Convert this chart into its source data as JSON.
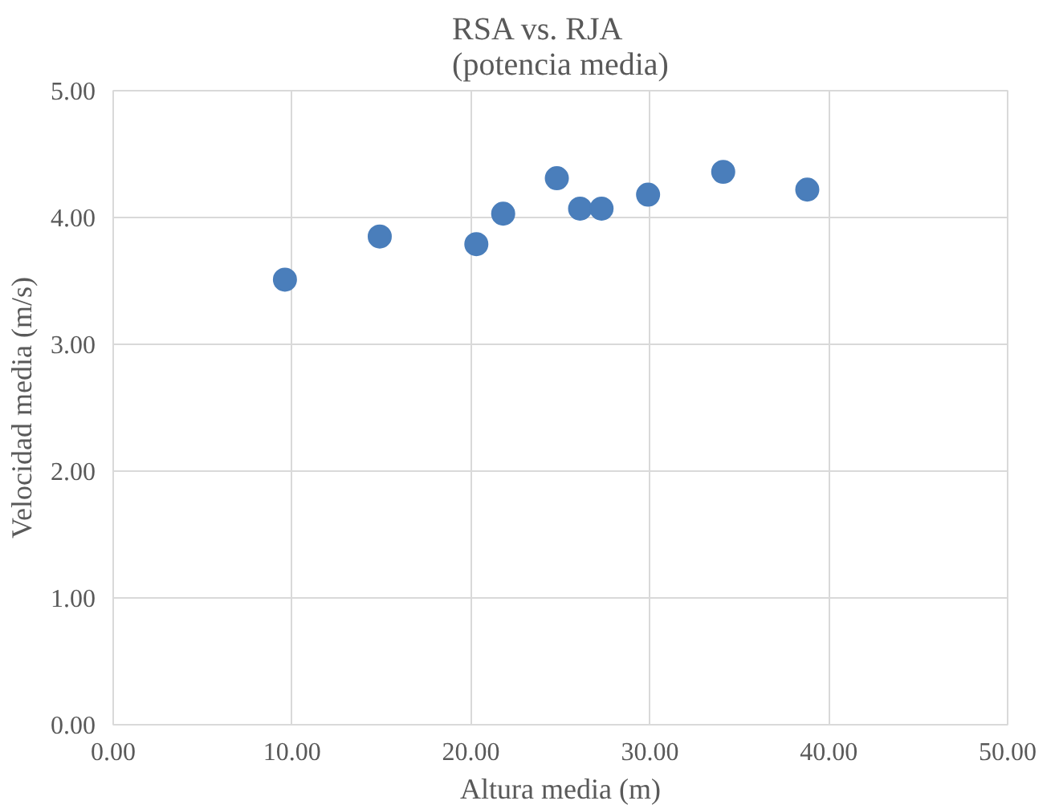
{
  "chart_data": {
    "type": "scatter",
    "title": "RSA vs. RJA\n(potencia media)",
    "xlabel": "Altura media (m)",
    "ylabel": "Velocidad media (m/s)",
    "x": [
      9.6,
      14.9,
      20.3,
      21.8,
      24.8,
      26.1,
      27.3,
      29.9,
      34.1,
      38.8
    ],
    "series": [
      {
        "color": "#4a7ebb",
        "values": [
          3.51,
          3.85,
          3.79,
          4.03,
          4.31,
          4.07,
          4.07,
          4.18,
          4.36,
          4.22
        ]
      }
    ],
    "xlim": [
      0,
      50
    ],
    "ylim": [
      0,
      5
    ],
    "xticks": [
      {
        "value": 0,
        "label": "0.00"
      },
      {
        "value": 10,
        "label": "10.00"
      },
      {
        "value": 20,
        "label": "20.00"
      },
      {
        "value": 30,
        "label": "30.00"
      },
      {
        "value": 40,
        "label": "40.00"
      },
      {
        "value": 50,
        "label": "50.00"
      }
    ],
    "yticks": [
      {
        "value": 0,
        "label": "0.00"
      },
      {
        "value": 1,
        "label": "1.00"
      },
      {
        "value": 2,
        "label": "2.00"
      },
      {
        "value": 3,
        "label": "3.00"
      },
      {
        "value": 4,
        "label": "4.00"
      },
      {
        "value": 5,
        "label": "5.00"
      }
    ],
    "grid": true,
    "marker": "circle"
  }
}
